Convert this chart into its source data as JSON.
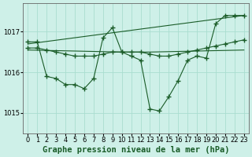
{
  "background_color": "#cef0e8",
  "grid_color": "#aaddd0",
  "line_color": "#1a5c28",
  "title": "Graphe pression niveau de la mer (hPa)",
  "xlim": [
    -0.5,
    23.5
  ],
  "ylim": [
    1014.5,
    1017.7
  ],
  "yticks": [
    1015,
    1016,
    1017
  ],
  "xticks": [
    0,
    1,
    2,
    3,
    4,
    5,
    6,
    7,
    8,
    9,
    10,
    11,
    12,
    13,
    14,
    15,
    16,
    17,
    18,
    19,
    20,
    21,
    22,
    23
  ],
  "series1_x": [
    0,
    1,
    2,
    3,
    4,
    5,
    6,
    7,
    8,
    9,
    10,
    11,
    12,
    13,
    14,
    15,
    16,
    17,
    18,
    19,
    20,
    21,
    22,
    23
  ],
  "series1_y": [
    1016.75,
    1016.75,
    1015.9,
    1015.85,
    1015.7,
    1015.7,
    1015.6,
    1015.85,
    1016.85,
    1017.1,
    1016.5,
    1016.4,
    1016.3,
    1015.1,
    1015.05,
    1015.4,
    1015.8,
    1016.3,
    1016.4,
    1016.35,
    1017.2,
    1017.4,
    1017.4,
    1017.4
  ],
  "series2_x": [
    0,
    1,
    2,
    3,
    4,
    5,
    6,
    7,
    8,
    9,
    10,
    11,
    12,
    13,
    14,
    15,
    16,
    17,
    18,
    19,
    20,
    21,
    22,
    23
  ],
  "series2_y": [
    1016.6,
    1016.6,
    1016.55,
    1016.5,
    1016.45,
    1016.4,
    1016.4,
    1016.4,
    1016.45,
    1016.5,
    1016.5,
    1016.5,
    1016.5,
    1016.45,
    1016.4,
    1016.4,
    1016.45,
    1016.5,
    1016.55,
    1016.6,
    1016.65,
    1016.7,
    1016.75,
    1016.8
  ],
  "series3_x": [
    0,
    10,
    13,
    23
  ],
  "series3_y": [
    1016.55,
    1016.5,
    1016.5,
    1016.55
  ],
  "series4_x": [
    0,
    23
  ],
  "series4_y": [
    1016.7,
    1017.4
  ],
  "title_fontsize": 7.5,
  "tick_fontsize": 6
}
